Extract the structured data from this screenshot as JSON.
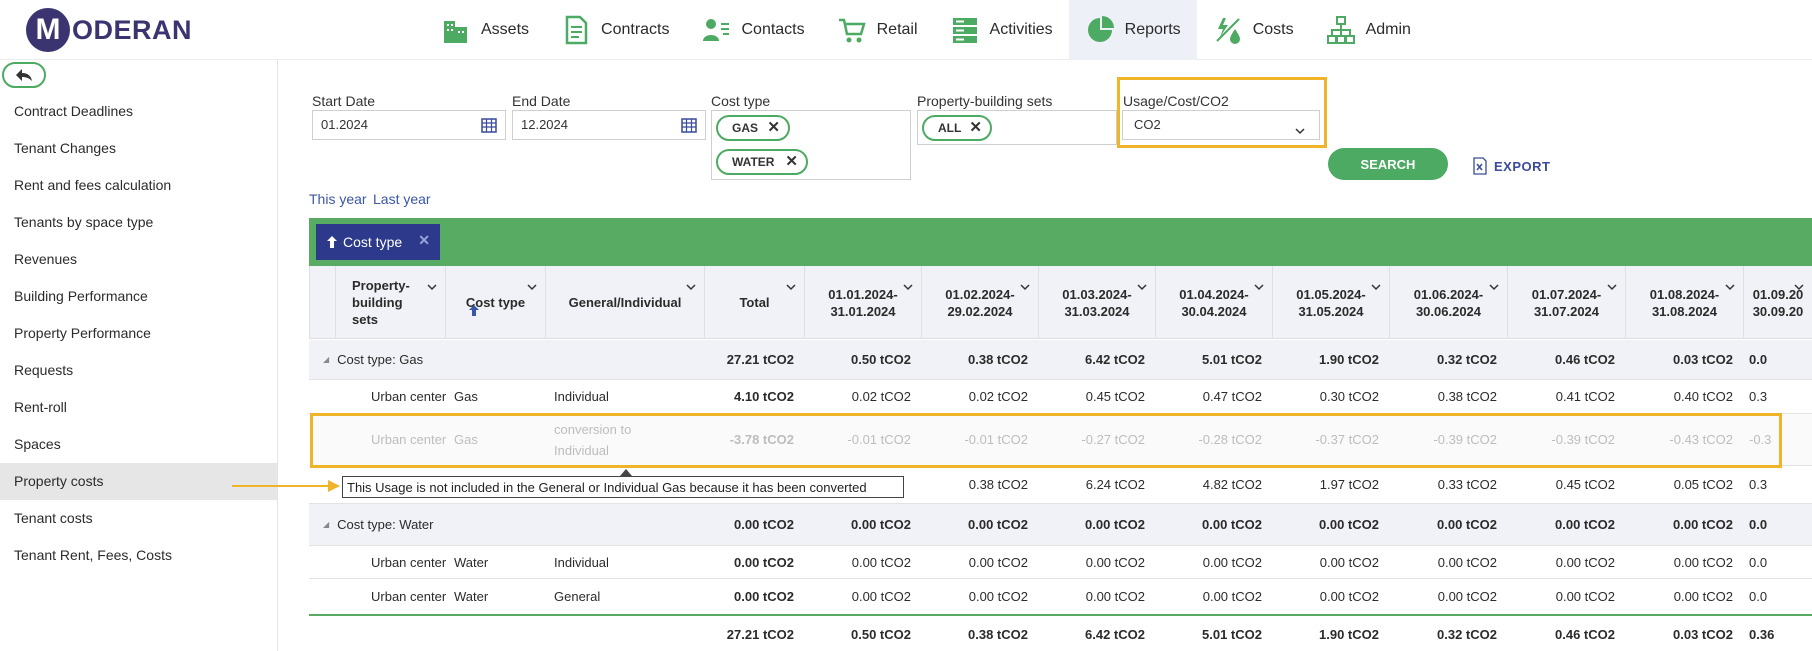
{
  "app": {
    "logo_letter": "M",
    "logo_text": "ODERAN"
  },
  "nav": [
    {
      "label": "Assets",
      "icon": "building-icon"
    },
    {
      "label": "Contracts",
      "icon": "document-icon"
    },
    {
      "label": "Contacts",
      "icon": "contacts-icon"
    },
    {
      "label": "Retail",
      "icon": "cart-icon"
    },
    {
      "label": "Activities",
      "icon": "server-icon"
    },
    {
      "label": "Reports",
      "icon": "pie-chart-icon",
      "active": true
    },
    {
      "label": "Costs",
      "icon": "energy-icon"
    },
    {
      "label": "Admin",
      "icon": "org-chart-icon"
    }
  ],
  "sidebar": {
    "items": [
      "Contract Deadlines",
      "Tenant Changes",
      "Rent and fees calculation",
      "Tenants by space type",
      "Revenues",
      "Building Performance",
      "Property Performance",
      "Requests",
      "Rent-roll",
      "Spaces",
      "Property costs",
      "Tenant costs",
      "Tenant Rent, Fees, Costs"
    ],
    "active_index": 10
  },
  "filters": {
    "start_date": {
      "label": "Start Date",
      "value": "01.2024"
    },
    "end_date": {
      "label": "End Date",
      "value": "12.2024"
    },
    "cost_type": {
      "label": "Cost type",
      "chips": [
        "GAS",
        "WATER"
      ]
    },
    "property_sets": {
      "label": "Property-building sets",
      "chips": [
        "ALL"
      ]
    },
    "usage": {
      "label": "Usage/Cost/CO2",
      "value": "CO2"
    },
    "search_label": "SEARCH",
    "export_label": "EXPORT",
    "this_year": "This year",
    "last_year": "Last year"
  },
  "grouping": {
    "chip_label": "Cost type"
  },
  "table": {
    "headers": {
      "property": "Property-\nbuilding\nsets",
      "cost_type": "Cost type",
      "general": "General/Individual",
      "total": "Total",
      "months": [
        "01.01.2024-\n31.01.2024",
        "01.02.2024-\n29.02.2024",
        "01.03.2024-\n31.03.2024",
        "01.04.2024-\n30.04.2024",
        "01.05.2024-\n31.05.2024",
        "01.06.2024-\n30.06.2024",
        "01.07.2024-\n31.07.2024",
        "01.08.2024-\n31.08.2024",
        "01.09.20\n30.09.20"
      ]
    },
    "gas_group": {
      "label": "Cost type: Gas",
      "total": "27.21 tCO2",
      "months": [
        "0.50 tCO2",
        "0.38 tCO2",
        "6.42 tCO2",
        "5.01 tCO2",
        "1.90 tCO2",
        "0.32 tCO2",
        "0.46 tCO2",
        "0.03 tCO2",
        "0.0"
      ]
    },
    "gas_individual": {
      "property": "Urban center",
      "cost_type": "Gas",
      "general": "Individual",
      "total": "4.10 tCO2",
      "months": [
        "0.02 tCO2",
        "0.02 tCO2",
        "0.45 tCO2",
        "0.47 tCO2",
        "0.30 tCO2",
        "0.38 tCO2",
        "0.41 tCO2",
        "0.40 tCO2",
        "0.3"
      ]
    },
    "gas_conversion": {
      "property": "Urban center",
      "cost_type": "Gas",
      "general": "conversion to Individual",
      "total": "-3.78 tCO2",
      "months": [
        "-0.01 tCO2",
        "-0.01 tCO2",
        "-0.27 tCO2",
        "-0.28 tCO2",
        "-0.37 tCO2",
        "-0.39 tCO2",
        "-0.39 tCO2",
        "-0.43 tCO2",
        "-0.3"
      ]
    },
    "gas_general": {
      "months_partial_first": "2",
      "months": [
        "0.38 tCO2",
        "6.24 tCO2",
        "4.82 tCO2",
        "1.97 tCO2",
        "0.33 tCO2",
        "0.45 tCO2",
        "0.05 tCO2",
        "0.3"
      ]
    },
    "tooltip": "This Usage is not included in the General or Individual Gas because it has been converted",
    "water_group": {
      "label": "Cost type: Water",
      "total": "0.00 tCO2",
      "months": [
        "0.00 tCO2",
        "0.00 tCO2",
        "0.00 tCO2",
        "0.00 tCO2",
        "0.00 tCO2",
        "0.00 tCO2",
        "0.00 tCO2",
        "0.00 tCO2",
        "0.0"
      ]
    },
    "water_individual": {
      "property": "Urban center",
      "cost_type": "Water",
      "general": "Individual",
      "total": "0.00 tCO2",
      "months": [
        "0.00 tCO2",
        "0.00 tCO2",
        "0.00 tCO2",
        "0.00 tCO2",
        "0.00 tCO2",
        "0.00 tCO2",
        "0.00 tCO2",
        "0.00 tCO2",
        "0.0"
      ]
    },
    "water_general": {
      "property": "Urban center",
      "cost_type": "Water",
      "general": "General",
      "total": "0.00 tCO2",
      "months": [
        "0.00 tCO2",
        "0.00 tCO2",
        "0.00 tCO2",
        "0.00 tCO2",
        "0.00 tCO2",
        "0.00 tCO2",
        "0.00 tCO2",
        "0.00 tCO2",
        "0.0"
      ]
    },
    "totals": {
      "total": "27.21 tCO2",
      "months": [
        "0.50 tCO2",
        "0.38 tCO2",
        "6.42 tCO2",
        "5.01 tCO2",
        "1.90 tCO2",
        "0.32 tCO2",
        "0.46 tCO2",
        "0.03 tCO2",
        "0.36"
      ]
    }
  },
  "colors": {
    "brand": "#3a3570",
    "accent_green": "#57ab62",
    "highlight": "#f0b429",
    "group_chip": "#2d3a8c"
  }
}
